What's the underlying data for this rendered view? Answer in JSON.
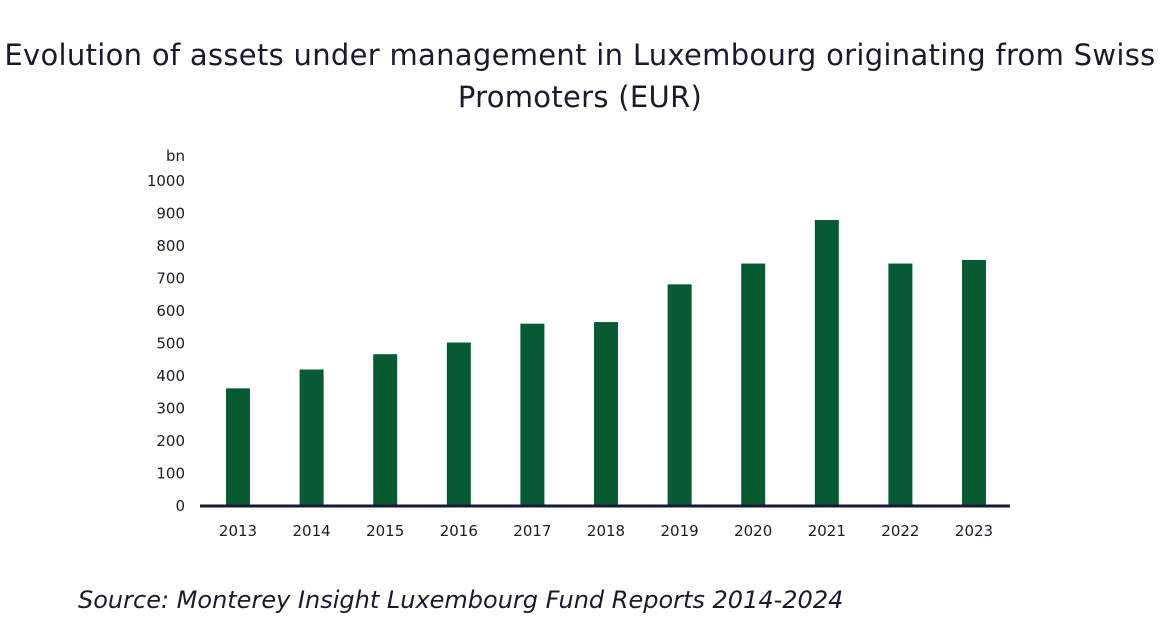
{
  "chart_data": {
    "type": "bar",
    "title": "Evolution of assets under management in Luxembourg originating from Swiss Promoters (EUR)",
    "xlabel": "",
    "ylabel": "bn",
    "categories": [
      "2013",
      "2014",
      "2015",
      "2016",
      "2017",
      "2018",
      "2019",
      "2020",
      "2021",
      "2022",
      "2023"
    ],
    "values": [
      362,
      420,
      467,
      503,
      561,
      566,
      682,
      746,
      880,
      746,
      757
    ],
    "ylim": [
      0,
      1000
    ],
    "yticks": [
      "0",
      "100",
      "200",
      "300",
      "400",
      "500",
      "600",
      "700",
      "800",
      "900",
      "1000"
    ],
    "grid": false,
    "bar_color": "#075a32",
    "axis_color": "#1a1a2e",
    "source": "Source: Monterey Insight Luxembourg Fund Reports 2014-2024"
  }
}
